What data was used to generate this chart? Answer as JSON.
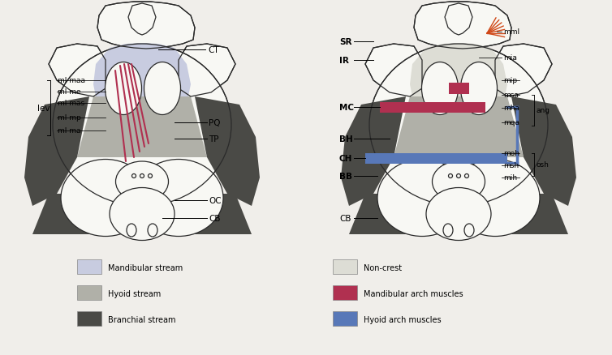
{
  "bg_color": "#f0eeea",
  "c_mandibular": "#c8cce0",
  "c_hyoid": "#b0b0a8",
  "c_branchial": "#4a4a46",
  "c_noncrest": "#ddddd5",
  "c_red": "#b03050",
  "c_blue": "#5878b8",
  "c_outline": "#2a2a2a",
  "c_white": "#f8f8f4",
  "legend_items_left": [
    {
      "label": "Mandibular stream",
      "color": "#c8cce0"
    },
    {
      "label": "Hyoid stream",
      "color": "#b0b0a8"
    },
    {
      "label": "Branchial stream",
      "color": "#4a4a46"
    }
  ],
  "legend_items_right": [
    {
      "label": "Non-crest",
      "color": "#ddddd5"
    },
    {
      "label": "Mandibular arch muscles",
      "color": "#b03050"
    },
    {
      "label": "Hyoid arch muscles",
      "color": "#5878b8"
    }
  ]
}
